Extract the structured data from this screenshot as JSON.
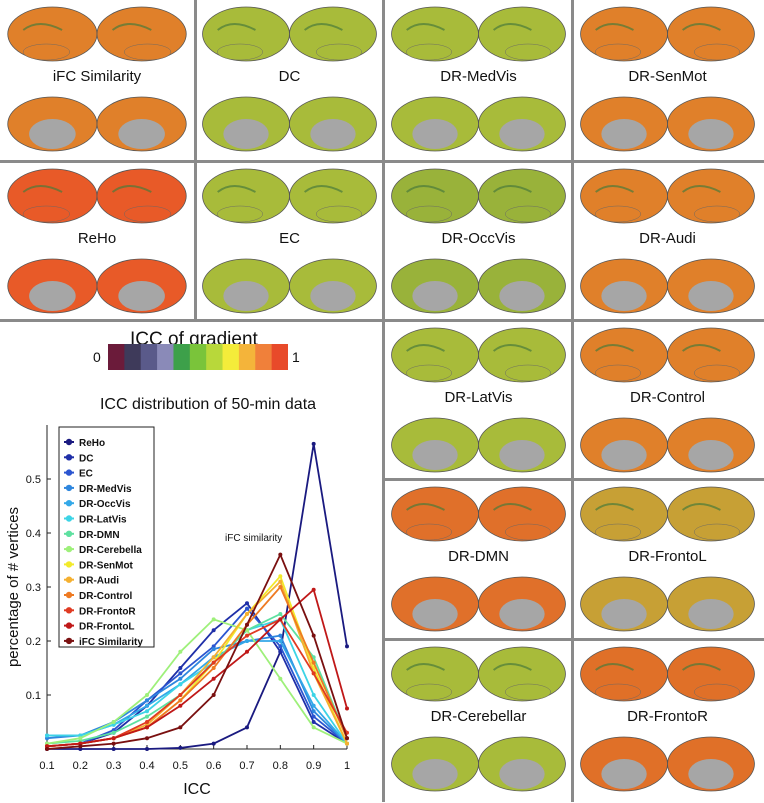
{
  "panels": [
    {
      "label": "iFC Similarity",
      "c": "#e0802a"
    },
    {
      "label": "DC",
      "c": "#a8bb3a"
    },
    {
      "label": "DR-MedVis",
      "c": "#a8bb3a"
    },
    {
      "label": "DR-SenMot",
      "c": "#e0802a"
    },
    {
      "label": "ReHo",
      "c": "#e85a28"
    },
    {
      "label": "EC",
      "c": "#a8bb3a"
    },
    {
      "label": "DR-OccVis",
      "c": "#99b23a"
    },
    {
      "label": "DR-Audi",
      "c": "#e0802a"
    },
    {
      "label": "DR-LatVis",
      "c": "#a8bb3a"
    },
    {
      "label": "DR-Control",
      "c": "#e0802a"
    },
    {
      "label": "DR-DMN",
      "c": "#e0702a"
    },
    {
      "label": "DR-FrontoL",
      "c": "#c7a035"
    },
    {
      "label": "DR-Cerebellar",
      "c": "#a8bb3a"
    },
    {
      "label": "DR-FrontoR",
      "c": "#e07028"
    }
  ],
  "colorbar": {
    "title": "ICC of gradient",
    "min_label": "0",
    "max_label": "1",
    "colors": [
      "#6b1b3a",
      "#3e3a5a",
      "#5a5a8a",
      "#8a8ab8",
      "#3da04a",
      "#7ac43a",
      "#b8d83a",
      "#f4ec3a",
      "#f4b43a",
      "#f0803a",
      "#e84a2a"
    ]
  },
  "chart_data": {
    "type": "line",
    "title": "ICC distribution of 50-min data",
    "xlabel": "ICC",
    "ylabel": "percentage of # vertices",
    "x": [
      0.1,
      0.2,
      0.3,
      0.4,
      0.5,
      0.6,
      0.7,
      0.8,
      0.9,
      1
    ],
    "xticks": [
      "0.1",
      "0.2",
      "0.3",
      "0.4",
      "0.5",
      "0.6",
      "0.7",
      "0.8",
      "0.9",
      "1"
    ],
    "xlim": [
      0.1,
      1.0
    ],
    "ylim": [
      0,
      0.6
    ],
    "yticks": [
      "0.1",
      "0.2",
      "0.3",
      "0.4",
      "0.5"
    ],
    "annotation": "iFC similarity",
    "legend_position": "top-left",
    "series": [
      {
        "name": "ReHo",
        "color": "#1a1a80",
        "values": [
          0.0,
          0.0,
          0.0,
          0.0,
          0.002,
          0.01,
          0.04,
          0.18,
          0.565,
          0.19
        ]
      },
      {
        "name": "DC",
        "color": "#1f2fa8",
        "values": [
          0.005,
          0.01,
          0.03,
          0.08,
          0.15,
          0.22,
          0.27,
          0.18,
          0.05,
          0.01
        ]
      },
      {
        "name": "EC",
        "color": "#2b55d0",
        "values": [
          0.005,
          0.01,
          0.035,
          0.09,
          0.14,
          0.19,
          0.26,
          0.19,
          0.06,
          0.01
        ]
      },
      {
        "name": "DR-MedVis",
        "color": "#2e86de",
        "values": [
          0.02,
          0.025,
          0.05,
          0.09,
          0.13,
          0.185,
          0.2,
          0.21,
          0.07,
          0.01
        ]
      },
      {
        "name": "DR-OccVis",
        "color": "#33a8e8",
        "values": [
          0.025,
          0.025,
          0.045,
          0.08,
          0.12,
          0.17,
          0.2,
          0.2,
          0.08,
          0.01
        ]
      },
      {
        "name": "DR-LatVis",
        "color": "#3dd4e6",
        "values": [
          0.025,
          0.025,
          0.045,
          0.07,
          0.12,
          0.16,
          0.22,
          0.24,
          0.1,
          0.01
        ]
      },
      {
        "name": "DR-DMN",
        "color": "#5ee0a0",
        "values": [
          0.01,
          0.015,
          0.03,
          0.06,
          0.1,
          0.16,
          0.22,
          0.25,
          0.17,
          0.02
        ]
      },
      {
        "name": "DR-Cerebella",
        "color": "#9ef07a",
        "values": [
          0.01,
          0.02,
          0.05,
          0.1,
          0.18,
          0.24,
          0.22,
          0.13,
          0.04,
          0.01
        ]
      },
      {
        "name": "DR-SenMot",
        "color": "#f2ea2a",
        "values": [
          0.005,
          0.01,
          0.02,
          0.04,
          0.09,
          0.16,
          0.25,
          0.32,
          0.15,
          0.01
        ]
      },
      {
        "name": "DR-Audi",
        "color": "#f5b030",
        "values": [
          0.005,
          0.01,
          0.02,
          0.045,
          0.1,
          0.17,
          0.25,
          0.31,
          0.14,
          0.01
        ]
      },
      {
        "name": "DR-Control",
        "color": "#ee7a22",
        "values": [
          0.005,
          0.01,
          0.02,
          0.04,
          0.09,
          0.15,
          0.23,
          0.3,
          0.16,
          0.02
        ]
      },
      {
        "name": "DR-FrontoR",
        "color": "#e03a22",
        "values": [
          0.005,
          0.01,
          0.02,
          0.05,
          0.1,
          0.16,
          0.21,
          0.24,
          0.14,
          0.03
        ]
      },
      {
        "name": "DR-FrontoL",
        "color": "#c01818",
        "values": [
          0.005,
          0.01,
          0.02,
          0.04,
          0.08,
          0.13,
          0.18,
          0.24,
          0.295,
          0.075
        ]
      },
      {
        "name": "iFC Similarity",
        "color": "#7a1010",
        "values": [
          0.0,
          0.005,
          0.01,
          0.02,
          0.04,
          0.1,
          0.23,
          0.36,
          0.21,
          0.02
        ]
      }
    ]
  }
}
